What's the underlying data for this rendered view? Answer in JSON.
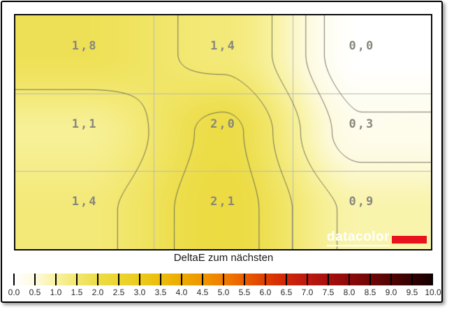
{
  "chart_data": {
    "type": "heatmap",
    "title": "DeltaE zum nächsten",
    "rows": 3,
    "cols": 3,
    "grid_values": [
      [
        1.8,
        1.4,
        0.0
      ],
      [
        1.1,
        2.0,
        0.3
      ],
      [
        1.4,
        2.1,
        0.9
      ]
    ],
    "cell_labels": [
      [
        "1,8",
        "1,4",
        "0,0"
      ],
      [
        "1,1",
        "2,0",
        "0,3"
      ],
      [
        "1,4",
        "2,1",
        "0,9"
      ]
    ],
    "contour_levels": [
      0.25,
      0.5,
      1.0,
      1.5,
      1.9
    ],
    "scale": {
      "min": 0.0,
      "max": 10.0,
      "step": 0.5,
      "tick_labels": [
        "0.0",
        "0.5",
        "1.0",
        "1.5",
        "2.0",
        "2.5",
        "3.0",
        "3.5",
        "4.0",
        "4.5",
        "5.0",
        "5.5",
        "6.0",
        "6.5",
        "7.0",
        "7.5",
        "8.0",
        "8.5",
        "9.0",
        "9.5",
        "10.0"
      ]
    },
    "colormap": [
      "#ffffff",
      "#fdfade",
      "#f8f2a0",
      "#f2e76f",
      "#ecdc46",
      "#ebd52f",
      "#eccb1d",
      "#ecbd0c",
      "#edaa02",
      "#ee9600",
      "#f07e00",
      "#ea5d00",
      "#de3e00",
      "#d02608",
      "#bd1910",
      "#a60f0f",
      "#8d0a0a",
      "#700707",
      "#520404",
      "#330101",
      "#140000"
    ],
    "grid_line_color": "#b9bcb4",
    "contour_color": "#5c5c50",
    "value_label_color": "#87877c",
    "legend_position": "bottom"
  },
  "branding": {
    "logo_text": "datacolor",
    "logo_text_color": "#ffffff",
    "logo_bar_color": "#e8121c"
  }
}
